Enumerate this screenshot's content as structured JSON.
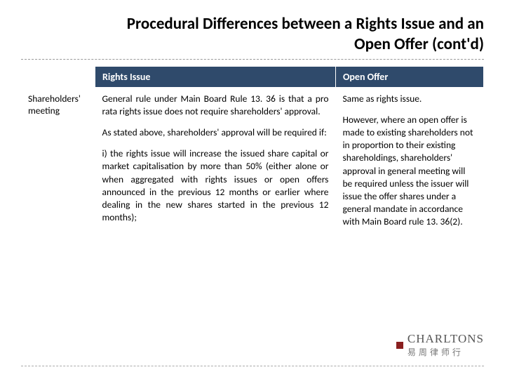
{
  "title": "Procedural Differences between a Rights Issue and an Open Offer (cont'd)",
  "colors": {
    "header_bg": "#2f4a6b",
    "header_text": "#ffffff",
    "divider": "#999999",
    "brand_sq": "#8a1f1f",
    "text": "#000000"
  },
  "typography": {
    "title_fontsize": 23,
    "header_fontsize": 14,
    "body_fontsize": 13.5
  },
  "table": {
    "columns": [
      {
        "label": "",
        "width_pct": 16
      },
      {
        "label": "Rights Issue",
        "width_pct": 52
      },
      {
        "label": "Open Offer",
        "width_pct": 32
      }
    ],
    "row_label": "Shareholders' meeting",
    "rights_issue": {
      "p1": "General rule under Main Board Rule 13. 36 is that a pro rata rights issue does not require shareholders' approval.",
      "p2": "As stated above, shareholders' approval will be required if:",
      "p3": "i) the rights issue will increase the issued share capital or market capitalisation by more than 50% (either alone or when aggregated with rights issues or open offers announced in the previous 12 months or earlier where dealing in the new shares started in the previous 12 months);"
    },
    "open_offer": {
      "p1": "Same as rights issue.",
      "p2": "However, where an open offer is made to existing shareholders not in proportion to their existing shareholdings, shareholders' approval in general meeting will be required unless the issuer will issue the offer shares under a general mandate in accordance with Main Board rule 13. 36(2)."
    }
  },
  "footer": {
    "brand_en": "CHARLTONS",
    "brand_cn": "易周律师行",
    "icon": "brand-square"
  }
}
